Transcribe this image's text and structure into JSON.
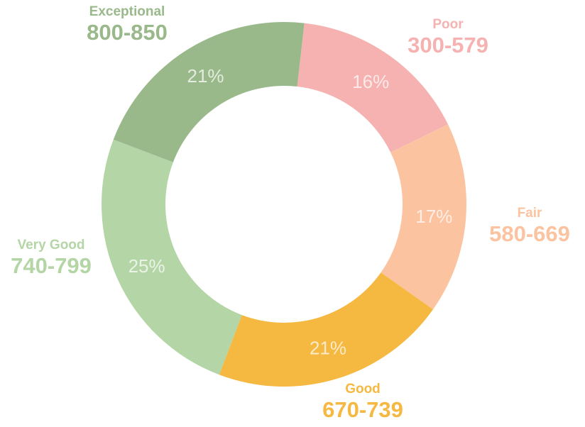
{
  "chart_data": {
    "type": "pie",
    "donut": true,
    "categories": [
      "Poor",
      "Fair",
      "Good",
      "Very Good",
      "Exceptional"
    ],
    "ranges": [
      "300-579",
      "580-669",
      "670-739",
      "740-799",
      "800-850"
    ],
    "values": [
      16,
      17,
      21,
      25,
      21
    ],
    "value_labels": [
      "16%",
      "17%",
      "21%",
      "25%",
      "21%"
    ],
    "colors": [
      "#F5B2B0",
      "#FBC3A0",
      "#F5B840",
      "#B4D5A6",
      "#9AB98B"
    ],
    "legend": "labels placed outside each slice"
  }
}
